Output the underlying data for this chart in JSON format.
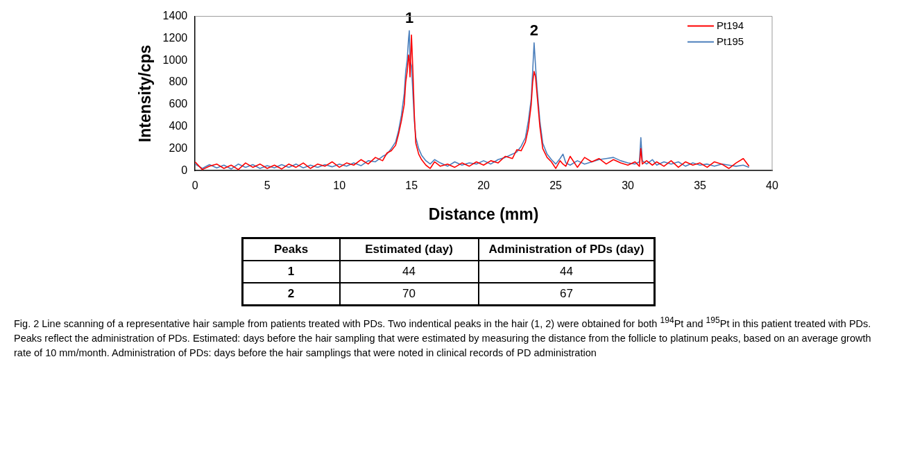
{
  "chart_data": [
    {
      "type": "line",
      "xlabel": "Distance (mm)",
      "ylabel": "Intensity/cps",
      "xlim": [
        0,
        40
      ],
      "xticks": [
        0,
        5,
        10,
        15,
        20,
        25,
        30,
        35,
        40
      ],
      "ylim": [
        0,
        1400
      ],
      "yticks": [
        0,
        200,
        400,
        600,
        800,
        1000,
        1200,
        1400
      ],
      "grid": false,
      "legend": "top right",
      "marker": "none",
      "line_style": "solid",
      "x": [
        0,
        0.5,
        1,
        1.5,
        2,
        2.5,
        3,
        3.5,
        4,
        4.5,
        5,
        5.5,
        6,
        6.5,
        7,
        7.5,
        8,
        8.5,
        9,
        9.5,
        10,
        10.5,
        11,
        11.5,
        12,
        12.5,
        13,
        13.3,
        13.6,
        13.9,
        14.1,
        14.3,
        14.5,
        14.6,
        14.7,
        14.8,
        14.85,
        14.9,
        15.0,
        15.1,
        15.2,
        15.3,
        15.5,
        15.7,
        16,
        16.3,
        16.6,
        17,
        17.5,
        18,
        18.5,
        19,
        19.5,
        20,
        20.5,
        21,
        21.5,
        22,
        22.3,
        22.6,
        22.9,
        23.1,
        23.3,
        23.4,
        23.5,
        23.6,
        23.7,
        23.9,
        24.1,
        24.4,
        24.7,
        25,
        25.3,
        25.5,
        25.7,
        26,
        26.5,
        27,
        27.5,
        28,
        28.5,
        29,
        29.5,
        30,
        30.5,
        30.8,
        30.9,
        31.0,
        31.3,
        31.7,
        32,
        32.5,
        33,
        33.5,
        34,
        34.5,
        35,
        35.5,
        36,
        36.5,
        37,
        37.5,
        38,
        38.4
      ],
      "series": [
        {
          "name": "Pt194",
          "color": "#ff0000",
          "values": [
            80,
            10,
            40,
            60,
            20,
            50,
            10,
            70,
            30,
            60,
            20,
            50,
            15,
            60,
            30,
            70,
            20,
            60,
            40,
            80,
            30,
            70,
            50,
            100,
            60,
            120,
            90,
            160,
            180,
            230,
            330,
            450,
            600,
            800,
            900,
            1050,
            1000,
            850,
            1230,
            900,
            500,
            250,
            150,
            100,
            50,
            20,
            80,
            40,
            60,
            30,
            70,
            40,
            80,
            50,
            90,
            70,
            130,
            110,
            190,
            180,
            260,
            380,
            600,
            800,
            900,
            850,
            700,
            400,
            200,
            120,
            80,
            20,
            90,
            60,
            40,
            130,
            30,
            120,
            80,
            110,
            60,
            100,
            70,
            50,
            80,
            40,
            200,
            60,
            90,
            50,
            80,
            40,
            90,
            30,
            80,
            50,
            70,
            30,
            80,
            60,
            20,
            70,
            110,
            40
          ]
        },
        {
          "name": "Pt195",
          "color": "#4a7ebb",
          "values": [
            60,
            20,
            55,
            25,
            50,
            15,
            60,
            30,
            55,
            20,
            45,
            25,
            55,
            30,
            60,
            25,
            50,
            30,
            55,
            35,
            60,
            40,
            70,
            45,
            90,
            80,
            130,
            150,
            200,
            260,
            360,
            500,
            700,
            900,
            1000,
            1200,
            1270,
            1000,
            950,
            700,
            450,
            300,
            200,
            140,
            90,
            60,
            100,
            70,
            40,
            80,
            50,
            70,
            60,
            90,
            60,
            100,
            120,
            150,
            170,
            220,
            300,
            450,
            650,
            900,
            1160,
            950,
            760,
            450,
            250,
            150,
            100,
            60,
            110,
            150,
            70,
            50,
            90,
            60,
            80,
            100,
            110,
            120,
            90,
            70,
            60,
            80,
            300,
            90,
            60,
            100,
            50,
            80,
            60,
            80,
            40,
            70,
            50,
            60,
            40,
            60,
            50,
            40,
            50,
            30
          ]
        }
      ],
      "annotations": [
        {
          "text": "1",
          "x": 14.85,
          "y": 1270
        },
        {
          "text": "2",
          "x": 23.5,
          "y": 1160
        },
        "Fig. 2 Line scanning of a representative hair sample from patients treated with PDs. Two indentical peaks in the hair (1, 2) were obtained for both $^{194}$Pt and $^{195}$Pt in this patient treated with PDs. Peaks reflect the administration of PDs. Estimated: days before the hair sampling that were estimated by measuring the distance from the follicle to platinum peaks, based on an average growth rate of 10 mm/month. Administration of PDs: days before the hair samplings that were noted in clinical records of PD administration"
      ]
    },
    {
      "type": "other",
      "annotations": [
        "Peaks",
        "Estimated (day)",
        "Administration of PDs (day)",
        "1",
        "44",
        "44",
        "2",
        "70",
        "67"
      ]
    }
  ]
}
